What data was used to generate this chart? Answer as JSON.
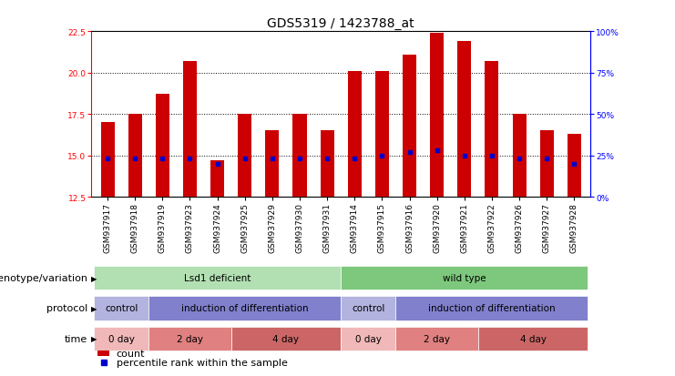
{
  "title": "GDS5319 / 1423788_at",
  "samples": [
    "GSM937917",
    "GSM937918",
    "GSM937919",
    "GSM937923",
    "GSM937924",
    "GSM937925",
    "GSM937929",
    "GSM937930",
    "GSM937931",
    "GSM937914",
    "GSM937915",
    "GSM937916",
    "GSM937920",
    "GSM937921",
    "GSM937922",
    "GSM937926",
    "GSM937927",
    "GSM937928"
  ],
  "counts": [
    17.0,
    17.5,
    18.7,
    20.7,
    14.7,
    17.5,
    16.5,
    17.5,
    16.5,
    20.1,
    20.1,
    21.1,
    22.4,
    21.9,
    20.7,
    17.5,
    16.5,
    16.3
  ],
  "percentile_ranks": [
    23,
    23,
    23,
    23,
    20,
    23,
    23,
    23,
    23,
    23,
    25,
    27,
    28,
    25,
    25,
    23,
    23,
    20
  ],
  "ylim_left": [
    12.5,
    22.5
  ],
  "ylim_right": [
    0,
    100
  ],
  "yticks_left": [
    12.5,
    15.0,
    17.5,
    20.0,
    22.5
  ],
  "yticks_right": [
    0,
    25,
    50,
    75,
    100
  ],
  "bar_color": "#cc0000",
  "dot_color": "#0000cc",
  "background_color": "#ffffff",
  "genotype_groups": [
    {
      "label": "Lsd1 deficient",
      "start": 0,
      "end": 9,
      "color": "#b2e0b2"
    },
    {
      "label": "wild type",
      "start": 9,
      "end": 18,
      "color": "#7dc87d"
    }
  ],
  "protocol_groups": [
    {
      "label": "control",
      "start": 0,
      "end": 2,
      "color": "#b3b3e0"
    },
    {
      "label": "induction of differentiation",
      "start": 2,
      "end": 9,
      "color": "#8080cc"
    },
    {
      "label": "control",
      "start": 9,
      "end": 11,
      "color": "#b3b3e0"
    },
    {
      "label": "induction of differentiation",
      "start": 11,
      "end": 18,
      "color": "#8080cc"
    }
  ],
  "time_groups": [
    {
      "label": "0 day",
      "start": 0,
      "end": 2,
      "color": "#f0b8b8"
    },
    {
      "label": "2 day",
      "start": 2,
      "end": 5,
      "color": "#e08080"
    },
    {
      "label": "4 day",
      "start": 5,
      "end": 9,
      "color": "#cc6666"
    },
    {
      "label": "0 day",
      "start": 9,
      "end": 11,
      "color": "#f0b8b8"
    },
    {
      "label": "2 day",
      "start": 11,
      "end": 14,
      "color": "#e08080"
    },
    {
      "label": "4 day",
      "start": 14,
      "end": 18,
      "color": "#cc6666"
    }
  ],
  "row_labels": [
    "genotype/variation",
    "protocol",
    "time"
  ],
  "legend_items": [
    {
      "label": "count",
      "color": "#cc0000",
      "marker": "s"
    },
    {
      "label": "percentile rank within the sample",
      "color": "#0000cc",
      "marker": "s"
    }
  ],
  "title_fontsize": 10,
  "tick_fontsize": 6.5,
  "label_fontsize": 8,
  "annot_fontsize": 7.5
}
